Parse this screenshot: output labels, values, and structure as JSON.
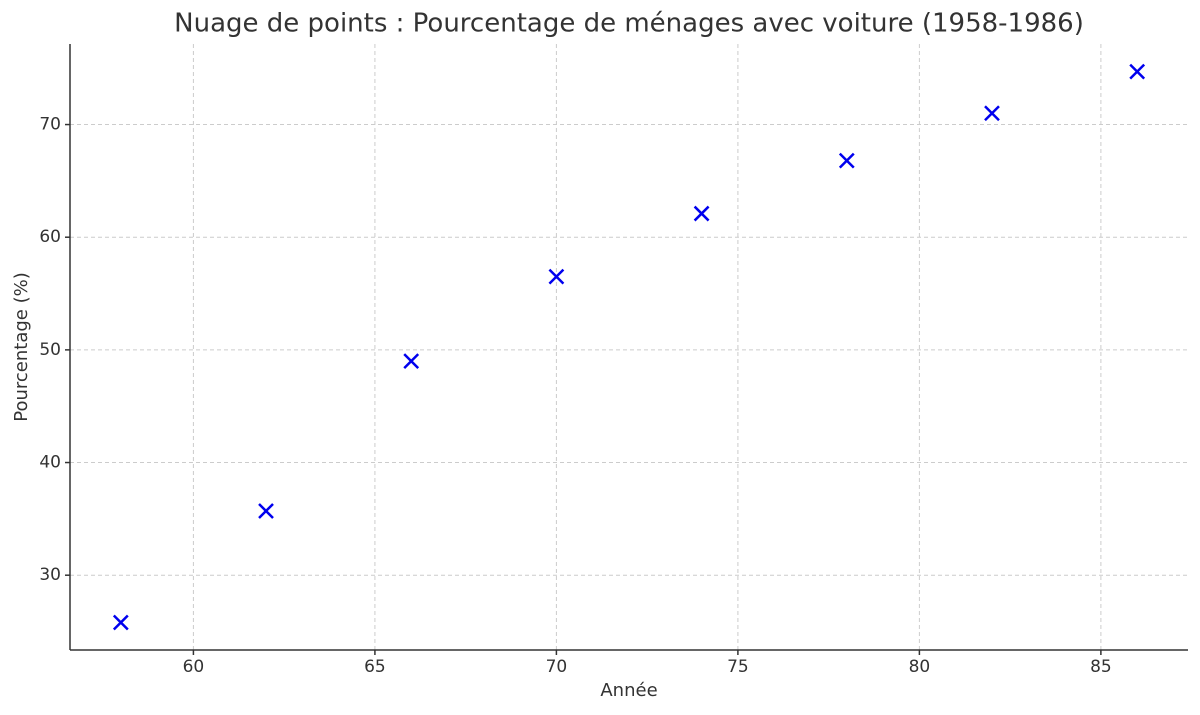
{
  "chart_data": {
    "type": "scatter",
    "title": "Nuage de points : Pourcentage de ménages avec voiture (1958-1986)",
    "x_label": "Année",
    "y_label": "Pourcentage (%)",
    "x": [
      58,
      62,
      66,
      70,
      74,
      78,
      82,
      86
    ],
    "values": [
      25.8,
      35.7,
      49.0,
      56.5,
      62.1,
      66.8,
      71.0,
      74.7
    ],
    "color": "#0000ee",
    "marker": "x",
    "xlim": [
      56.6,
      87.4
    ],
    "xticks": [
      60,
      65,
      70,
      75,
      80,
      85
    ],
    "ylim": [
      23.36,
      77.15
    ],
    "yticks": [
      30,
      40,
      50,
      60,
      70
    ],
    "grid": true
  }
}
